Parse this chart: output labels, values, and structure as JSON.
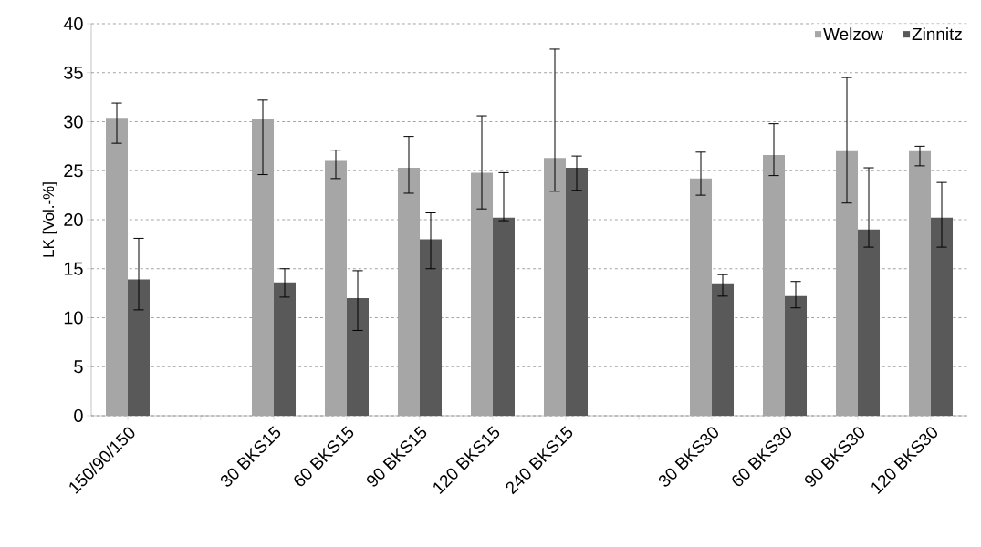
{
  "chart_data": {
    "type": "bar",
    "ylabel": "LK [Vol.-%]",
    "categories": [
      "150/90/150",
      null,
      "30 BKS15",
      "60 BKS15",
      "90 BKS15",
      "120 BKS15",
      "240 BKS15",
      null,
      "30 BKS30",
      "60 BKS30",
      "90 BKS30",
      "120 BKS30"
    ],
    "series": [
      {
        "name": "Welzow",
        "color": "#a6a6a6",
        "values": [
          30.4,
          null,
          30.3,
          26.0,
          25.3,
          24.8,
          26.3,
          null,
          24.2,
          26.6,
          27.0,
          27.0
        ],
        "errors": [
          [
            27.8,
            31.9
          ],
          null,
          [
            24.6,
            32.2
          ],
          [
            24.2,
            27.1
          ],
          [
            22.7,
            28.5
          ],
          [
            21.1,
            30.6
          ],
          [
            22.9,
            37.4
          ],
          null,
          [
            22.5,
            26.9
          ],
          [
            24.5,
            29.8
          ],
          [
            21.7,
            34.5
          ],
          [
            25.5,
            27.5
          ]
        ]
      },
      {
        "name": "Zinnitz",
        "color": "#595959",
        "values": [
          13.9,
          null,
          13.6,
          12.0,
          18.0,
          20.2,
          25.3,
          null,
          13.5,
          12.2,
          19.0,
          20.2
        ],
        "errors": [
          [
            10.8,
            18.1
          ],
          null,
          [
            12.1,
            15.0
          ],
          [
            8.7,
            14.8
          ],
          [
            15.0,
            20.7
          ],
          [
            19.9,
            24.8
          ],
          [
            23.0,
            26.5
          ],
          null,
          [
            12.2,
            14.4
          ],
          [
            11.0,
            13.7
          ],
          [
            17.2,
            25.3
          ],
          [
            17.2,
            23.8
          ]
        ]
      }
    ],
    "ylim": [
      0,
      40
    ],
    "yticks": [
      0,
      5,
      10,
      15,
      20,
      25,
      30,
      35,
      40
    ],
    "grid": "y",
    "legend": "top right"
  }
}
